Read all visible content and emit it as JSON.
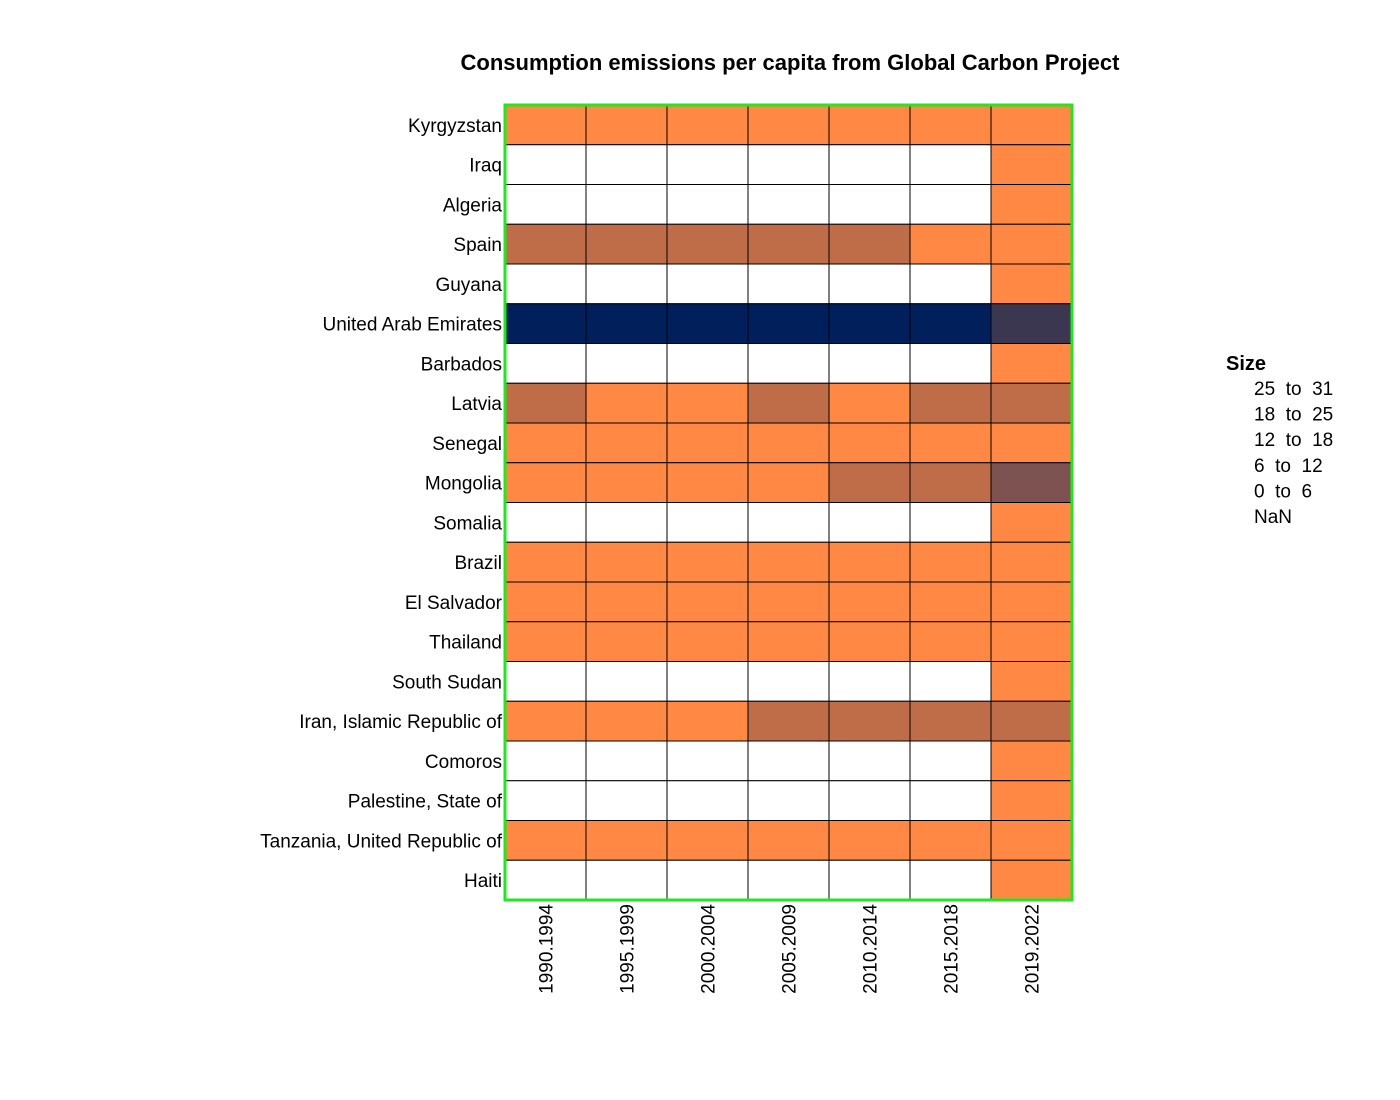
{
  "chart_data": {
    "type": "heatmap",
    "title": "Consumption emissions per capita from Global Carbon Project",
    "rows": [
      "Kyrgyzstan",
      "Iraq",
      "Algeria",
      "Spain",
      "Guyana",
      "United Arab Emirates",
      "Barbados",
      "Latvia",
      "Senegal",
      "Mongolia",
      "Somalia",
      "Brazil",
      "El Salvador",
      "Thailand",
      "South Sudan",
      "Iran, Islamic Republic of",
      "Comoros",
      "Palestine, State of",
      "Tanzania, United Republic of",
      "Haiti"
    ],
    "columns": [
      "1990.1994",
      "1995.1999",
      "2000.2004",
      "2005.2009",
      "2010.2014",
      "2015.2018",
      "2019.2022"
    ],
    "cell_classes": [
      [
        "0 to 6",
        "0 to 6",
        "0 to 6",
        "0 to 6",
        "0 to 6",
        "0 to 6",
        "0 to 6"
      ],
      [
        "NaN",
        "NaN",
        "NaN",
        "NaN",
        "NaN",
        "NaN",
        "0 to 6"
      ],
      [
        "NaN",
        "NaN",
        "NaN",
        "NaN",
        "NaN",
        "NaN",
        "0 to 6"
      ],
      [
        "6 to 12",
        "6 to 12",
        "6 to 12",
        "6 to 12",
        "6 to 12",
        "0 to 6",
        "0 to 6"
      ],
      [
        "NaN",
        "NaN",
        "NaN",
        "NaN",
        "NaN",
        "NaN",
        "0 to 6"
      ],
      [
        "25 to 31",
        "25 to 31",
        "25 to 31",
        "25 to 31",
        "25 to 31",
        "25 to 31",
        "18 to 25"
      ],
      [
        "NaN",
        "NaN",
        "NaN",
        "NaN",
        "NaN",
        "NaN",
        "0 to 6"
      ],
      [
        "6 to 12",
        "0 to 6",
        "0 to 6",
        "6 to 12",
        "0 to 6",
        "6 to 12",
        "6 to 12"
      ],
      [
        "0 to 6",
        "0 to 6",
        "0 to 6",
        "0 to 6",
        "0 to 6",
        "0 to 6",
        "0 to 6"
      ],
      [
        "0 to 6",
        "0 to 6",
        "0 to 6",
        "0 to 6",
        "6 to 12",
        "6 to 12",
        "12 to 18"
      ],
      [
        "NaN",
        "NaN",
        "NaN",
        "NaN",
        "NaN",
        "NaN",
        "0 to 6"
      ],
      [
        "0 to 6",
        "0 to 6",
        "0 to 6",
        "0 to 6",
        "0 to 6",
        "0 to 6",
        "0 to 6"
      ],
      [
        "0 to 6",
        "0 to 6",
        "0 to 6",
        "0 to 6",
        "0 to 6",
        "0 to 6",
        "0 to 6"
      ],
      [
        "0 to 6",
        "0 to 6",
        "0 to 6",
        "0 to 6",
        "0 to 6",
        "0 to 6",
        "0 to 6"
      ],
      [
        "NaN",
        "NaN",
        "NaN",
        "NaN",
        "NaN",
        "NaN",
        "0 to 6"
      ],
      [
        "0 to 6",
        "0 to 6",
        "0 to 6",
        "6 to 12",
        "6 to 12",
        "6 to 12",
        "6 to 12"
      ],
      [
        "NaN",
        "NaN",
        "NaN",
        "NaN",
        "NaN",
        "NaN",
        "0 to 6"
      ],
      [
        "NaN",
        "NaN",
        "NaN",
        "NaN",
        "NaN",
        "NaN",
        "0 to 6"
      ],
      [
        "0 to 6",
        "0 to 6",
        "0 to 6",
        "0 to 6",
        "0 to 6",
        "0 to 6",
        "0 to 6"
      ],
      [
        "NaN",
        "NaN",
        "NaN",
        "NaN",
        "NaN",
        "NaN",
        "0 to 6"
      ]
    ],
    "class_colors": {
      "25 to 31": "#001f5b",
      "18 to 25": "#3b3750",
      "12 to 18": "#7e5250",
      "6 to 12": "#bf6c48",
      "0 to 6": "#ff8944",
      "NaN": "#ffffff"
    },
    "cell_border_color": "#000000",
    "frame_color": "#22e622",
    "legend": {
      "title": "Size",
      "entries": [
        "25  to  31",
        "18  to  25",
        "12  to  18",
        "6  to  12",
        "0  to  6",
        "NaN"
      ],
      "position": "right"
    }
  }
}
